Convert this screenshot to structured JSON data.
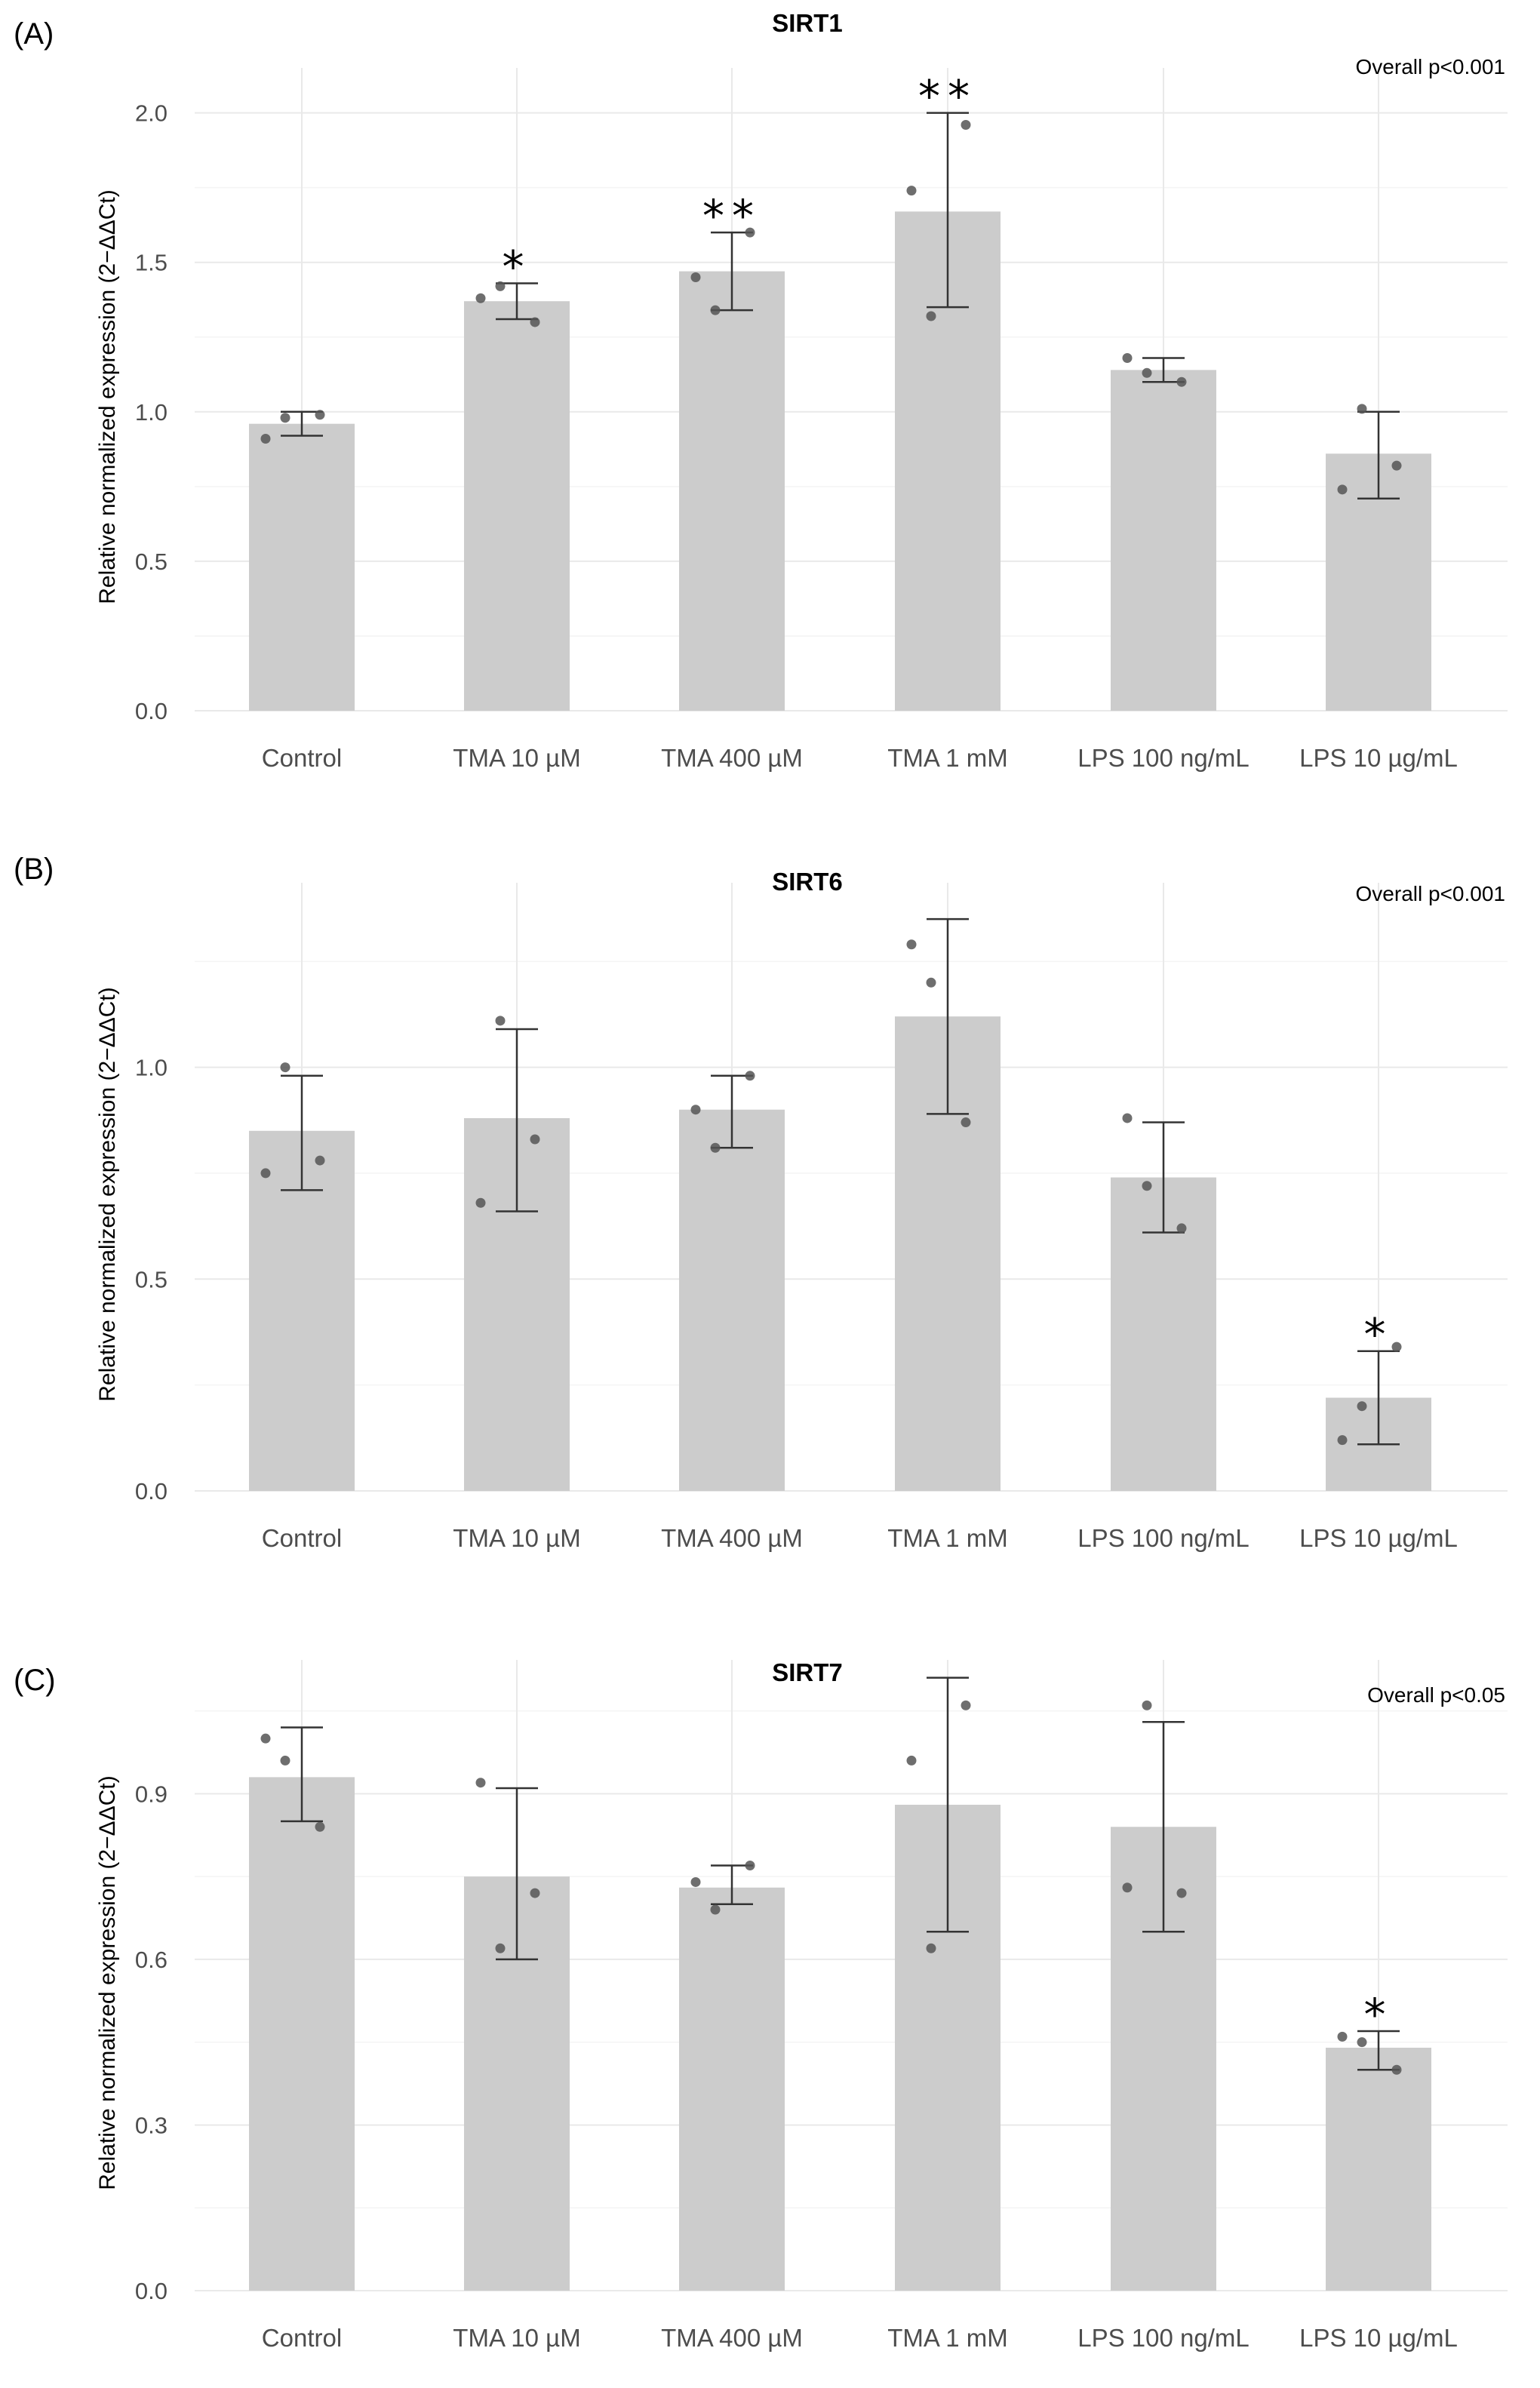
{
  "chart_data": [
    {
      "type": "bar",
      "panel_label": "(A)",
      "title": "SIRT1",
      "overall_p": "Overall p<0.001",
      "ylabel": "Relative normalized expression (2−ΔΔCt)",
      "xlabel": "",
      "ylim": [
        0,
        2.1
      ],
      "yticks": [
        "0.0",
        "0.5",
        "1.0",
        "1.5",
        "2.0"
      ],
      "ytick_values": [
        0,
        0.5,
        1.0,
        1.5,
        2.0
      ],
      "minor_ticks": [
        0.25,
        0.75,
        1.25,
        1.75
      ],
      "categories": [
        "Control",
        "TMA 10 µM",
        "TMA 400 µM",
        "TMA 1 mM",
        "LPS 100 ng/mL",
        "LPS 10 µg/mL"
      ],
      "values": [
        0.96,
        1.37,
        1.47,
        1.67,
        1.14,
        0.86
      ],
      "err_low": [
        0.92,
        1.31,
        1.34,
        1.35,
        1.1,
        0.71
      ],
      "err_high": [
        1.0,
        1.43,
        1.6,
        2.0,
        1.18,
        1.0
      ],
      "points": [
        [
          0.91,
          0.98,
          0.99
        ],
        [
          1.38,
          1.42,
          1.3
        ],
        [
          1.45,
          1.34,
          1.6
        ],
        [
          1.74,
          1.32,
          1.96
        ],
        [
          1.18,
          1.13,
          1.1
        ],
        [
          0.74,
          1.01,
          0.82
        ]
      ],
      "significance": [
        "",
        "*",
        "**",
        "**",
        "",
        ""
      ],
      "grid": true
    },
    {
      "type": "bar",
      "panel_label": "(B)",
      "title": "SIRT6",
      "overall_p": "Overall p<0.001",
      "ylabel": "Relative normalized expression (2−ΔΔCt)",
      "xlabel": "",
      "ylim": [
        0,
        1.4
      ],
      "yticks": [
        "0.0",
        "0.5",
        "1.0"
      ],
      "ytick_values": [
        0,
        0.5,
        1.0
      ],
      "minor_ticks": [
        0.25,
        0.75,
        1.25
      ],
      "categories": [
        "Control",
        "TMA 10 µM",
        "TMA 400 µM",
        "TMA 1 mM",
        "LPS 100 ng/mL",
        "LPS 10 µg/mL"
      ],
      "values": [
        0.85,
        0.88,
        0.9,
        1.12,
        0.74,
        0.22
      ],
      "err_low": [
        0.71,
        0.66,
        0.81,
        0.89,
        0.61,
        0.11
      ],
      "err_high": [
        0.98,
        1.09,
        0.98,
        1.35,
        0.87,
        0.33
      ],
      "points": [
        [
          0.75,
          1.0,
          0.78
        ],
        [
          0.68,
          1.11,
          0.83
        ],
        [
          0.9,
          0.81,
          0.98
        ],
        [
          1.29,
          1.2,
          0.87
        ],
        [
          0.88,
          0.72,
          0.62
        ],
        [
          0.12,
          0.2,
          0.34
        ]
      ],
      "significance": [
        "",
        "",
        "",
        "",
        "",
        "*"
      ],
      "grid": true
    },
    {
      "type": "bar",
      "panel_label": "(C)",
      "title": "SIRT7",
      "overall_p": "Overall p<0.05",
      "ylabel": "Relative normalized expression (2−ΔΔCt)",
      "xlabel": "",
      "ylim": [
        0,
        1.115
      ],
      "yticks": [
        "0.0",
        "0.3",
        "0.6",
        "0.9"
      ],
      "ytick_values": [
        0,
        0.3,
        0.6,
        0.9
      ],
      "minor_ticks": [
        0.15,
        0.45,
        0.75,
        1.05
      ],
      "categories": [
        "Control",
        "TMA 10 µM",
        "TMA 400 µM",
        "TMA 1 mM",
        "LPS 100 ng/mL",
        "LPS 10 µg/mL"
      ],
      "values": [
        0.93,
        0.75,
        0.73,
        0.88,
        0.84,
        0.44
      ],
      "err_low": [
        0.85,
        0.6,
        0.7,
        0.65,
        0.65,
        0.4
      ],
      "err_high": [
        1.02,
        0.91,
        0.77,
        1.11,
        1.03,
        0.47
      ],
      "points": [
        [
          1.0,
          0.96,
          0.84
        ],
        [
          0.92,
          0.62,
          0.72
        ],
        [
          0.74,
          0.69,
          0.77
        ],
        [
          0.96,
          0.62,
          1.06
        ],
        [
          0.73,
          1.06,
          0.72
        ],
        [
          0.46,
          0.45,
          0.4
        ]
      ],
      "significance": [
        "",
        "",
        "",
        "",
        "",
        "*"
      ],
      "grid": true
    }
  ]
}
